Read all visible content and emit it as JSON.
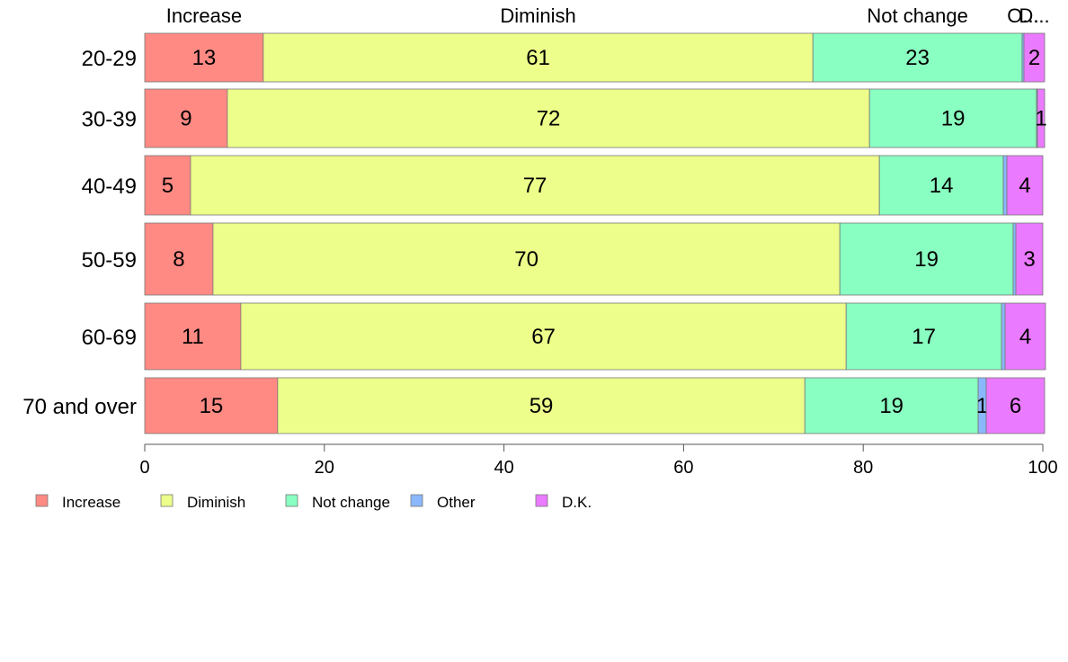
{
  "chart_data": {
    "type": "bar",
    "orientation": "horizontal",
    "stacked": true,
    "categories": [
      "20-29",
      "30-39",
      "40-49",
      "50-59",
      "60-69",
      "70 and over"
    ],
    "series": [
      {
        "name": "Increase",
        "color": "#ff8a84",
        "values": [
          13.2,
          9.2,
          5.1,
          7.6,
          10.7,
          14.8
        ]
      },
      {
        "name": "Diminish",
        "color": "#edff8a",
        "values": [
          61.2,
          71.5,
          76.7,
          69.8,
          67.4,
          58.7
        ]
      },
      {
        "name": "Not change",
        "color": "#8affc2",
        "values": [
          23.3,
          18.6,
          13.8,
          19.3,
          17.3,
          19.3
        ]
      },
      {
        "name": "Other",
        "color": "#8ab8ff",
        "values": [
          0.2,
          0.1,
          0.4,
          0.3,
          0.4,
          0.9
        ]
      },
      {
        "name": "D.K.",
        "color": "#ea7aff",
        "values": [
          2.3,
          0.8,
          4.0,
          3.0,
          4.5,
          6.5
        ]
      }
    ],
    "data_labels": [
      [
        "13",
        "61",
        "23",
        "",
        "2"
      ],
      [
        "9",
        "72",
        "19",
        "",
        "1"
      ],
      [
        "5",
        "77",
        "14",
        "",
        "4"
      ],
      [
        "8",
        "70",
        "19",
        "",
        "3"
      ],
      [
        "11",
        "67",
        "17",
        "",
        "4"
      ],
      [
        "15",
        "59",
        "19",
        "1",
        "6"
      ]
    ],
    "top_labels": [
      "Increase",
      "Diminish",
      "Not change",
      "O...",
      "D..."
    ],
    "xlim": [
      0,
      100
    ],
    "xticks": [
      0,
      20,
      40,
      60,
      80,
      100
    ],
    "xlabel": "",
    "ylabel": "",
    "title": "",
    "grid": false,
    "legend_position": "bottom-left"
  }
}
